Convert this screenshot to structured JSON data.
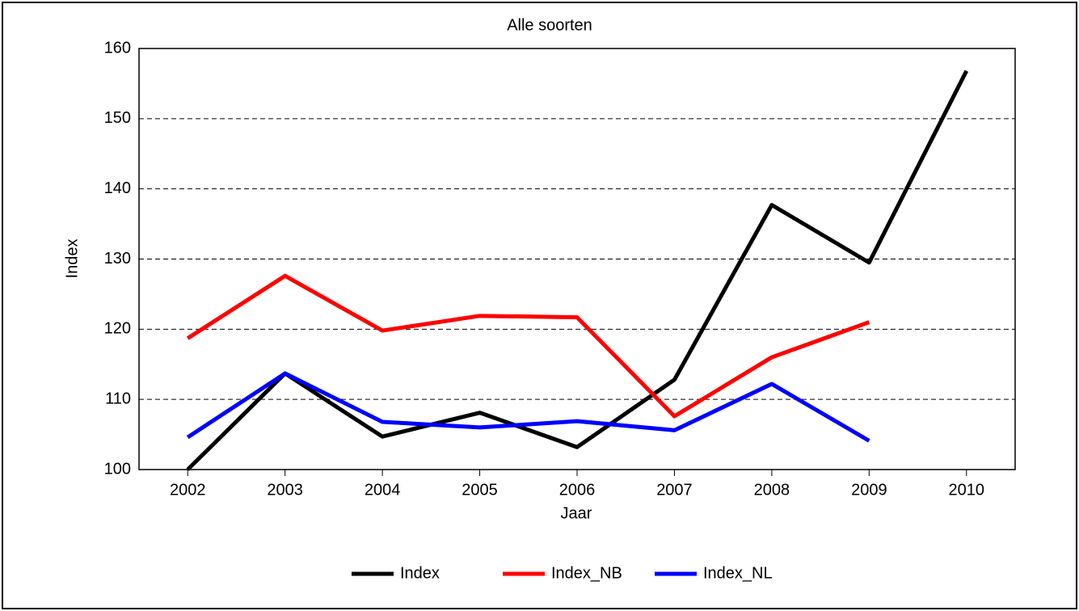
{
  "chart_data": {
    "type": "line",
    "title": "Alle soorten",
    "x_label": "Jaar",
    "y_label": "Index",
    "categories": [
      "2002",
      "2003",
      "2004",
      "2005",
      "2006",
      "2007",
      "2008",
      "2009",
      "2010"
    ],
    "series": [
      {
        "name": "Index",
        "color": "#000000",
        "values": [
          100,
          113.7,
          104.7,
          108.1,
          103.2,
          112.8,
          137.7,
          129.5,
          156.8
        ]
      },
      {
        "name": "Index_NB",
        "color": "#ff0000",
        "values": [
          118.7,
          127.6,
          119.8,
          121.9,
          121.7,
          107.6,
          116.0,
          121.0,
          null
        ]
      },
      {
        "name": "Index_NL",
        "color": "#0000ff",
        "values": [
          104.6,
          113.7,
          106.8,
          106.0,
          106.9,
          105.6,
          112.2,
          104.1,
          null
        ]
      }
    ],
    "ylim": [
      100,
      160
    ],
    "yticks": [
      100,
      110,
      120,
      130,
      140,
      150,
      160
    ],
    "grid": true,
    "legend": "bottom"
  }
}
